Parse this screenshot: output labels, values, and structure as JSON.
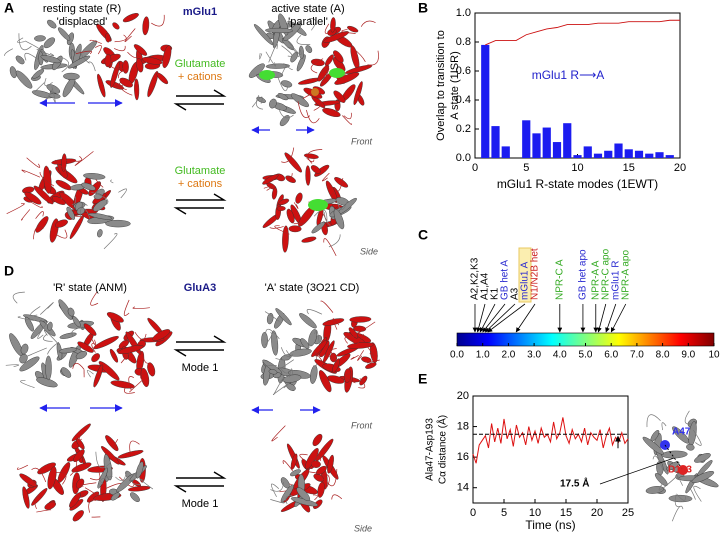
{
  "panel_labels": [
    "A",
    "B",
    "C",
    "D",
    "E"
  ],
  "panel_a": {
    "left_title": "resting state (R)",
    "left_subtitle": "'displaced'",
    "center_title": "mGlu1",
    "right_title": "active state (A)",
    "right_subtitle": "'parallel'",
    "ligand_1": "Glutamate",
    "ion_1": "+ cations",
    "view_1": "Front",
    "ligand_2": "Glutamate",
    "ion_2": "+ cations",
    "view_2": "Side"
  },
  "panel_d": {
    "left_title": "'R' state (ANM)",
    "center_title": "GluA3",
    "right_title": "'A' state (3O21 CD)",
    "mode_1": "Mode 1",
    "view_1": "Front",
    "mode_2": "Mode 1",
    "view_2": "Side"
  },
  "panel_e_structure": {
    "label_1": "A47",
    "label_2": "D193"
  },
  "chart_data": [
    {
      "type": "bar",
      "ylabel": [
        "Overlap to transition to",
        "A state (1ISR)"
      ],
      "xlabel": "mGlu1 R-state modes (1EWT)",
      "annotation": "mGlu1 R⟶A",
      "bars": {
        "color": "#1c1cf0",
        "x": [
          1,
          2,
          3,
          5,
          6,
          7,
          8,
          9,
          10,
          11,
          12,
          13,
          14,
          15,
          16,
          17,
          18,
          19
        ],
        "values": [
          0.78,
          0.22,
          0.08,
          0.26,
          0.17,
          0.21,
          0.11,
          0.24,
          0.02,
          0.08,
          0.03,
          0.05,
          0.1,
          0.06,
          0.05,
          0.03,
          0.04,
          0.02
        ]
      },
      "cumulative": {
        "color": "#cc1111",
        "x": [
          1,
          2,
          3,
          4,
          5,
          6,
          7,
          8,
          9,
          10,
          11,
          12,
          13,
          14,
          15,
          16,
          17,
          18,
          19,
          20
        ],
        "values": [
          0.78,
          0.81,
          0.81,
          0.81,
          0.85,
          0.87,
          0.89,
          0.9,
          0.92,
          0.92,
          0.92,
          0.93,
          0.93,
          0.93,
          0.94,
          0.94,
          0.94,
          0.94,
          0.95,
          0.95
        ]
      },
      "xlim": [
        0,
        20
      ],
      "xticks": [
        0,
        5,
        10,
        15,
        20
      ],
      "ylim": [
        0,
        1
      ],
      "yticks": [
        {
          "value": 0,
          "label": "0.0"
        },
        {
          "value": 0.2,
          "label": "0.2"
        },
        {
          "value": 0.4,
          "label": "0.4"
        },
        {
          "value": 0.6,
          "label": "0.6"
        },
        {
          "value": 0.8,
          "label": "0.8"
        },
        {
          "value": 1,
          "label": "1.0"
        }
      ]
    },
    {
      "type": "colorbar",
      "xlim": [
        0,
        10
      ],
      "xticks": [
        {
          "value": 0,
          "label": "0.0"
        },
        {
          "value": 1,
          "label": "1.0"
        },
        {
          "value": 2,
          "label": "2.0"
        },
        {
          "value": 3,
          "label": "3.0"
        },
        {
          "value": 4,
          "label": "4.0"
        },
        {
          "value": 5,
          "label": "5.0"
        },
        {
          "value": 6,
          "label": "6.0"
        },
        {
          "value": 7,
          "label": "7.0"
        },
        {
          "value": 8,
          "label": "8.0"
        },
        {
          "value": 9,
          "label": "9.0"
        },
        10
      ],
      "markers": [
        {
          "label": "A2,K2,K3",
          "value": 0.7,
          "color": "#000000"
        },
        {
          "label": "A1,A4",
          "value": 0.8,
          "color": "#000000"
        },
        {
          "label": "K1",
          "value": 0.9,
          "color": "#000000"
        },
        {
          "label": "GB het A",
          "value": 1.0,
          "color": "#2a2ad0"
        },
        {
          "label": "A3",
          "value": 1.1,
          "color": "#000000"
        },
        {
          "label": "mGlu1 A",
          "value": 1.2,
          "color": "#2a2ad0",
          "highlight": "#fbeeb0"
        },
        {
          "label": "N1/N2B het",
          "value": 2.3,
          "color": "#cc2222"
        },
        {
          "label": "NPR-C A",
          "value": 4.0,
          "color": "#33aa22"
        },
        {
          "label": "GB het apo",
          "value": 4.9,
          "color": "#2a2ad0"
        },
        {
          "label": "NPR-A A",
          "value": 5.4,
          "color": "#33aa22"
        },
        {
          "label": "NPR-C apo",
          "value": 5.5,
          "color": "#33aa22"
        },
        {
          "label": "mGlu1 R",
          "value": 5.8,
          "color": "#2a2ad0"
        },
        {
          "label": "NPR-A apo",
          "value": 6.0,
          "color": "#33aa22"
        }
      ]
    },
    {
      "type": "line",
      "ylabel": [
        "Ala47-Asp193",
        "Cα distance (Å)"
      ],
      "xlabel": "Time (ns)",
      "hline": 17.5,
      "hline_label": "17.5 Å",
      "color": "#dd1111",
      "x": [
        0,
        0.5,
        1,
        1.5,
        2,
        2.5,
        3,
        3.5,
        4,
        4.5,
        5,
        5.5,
        6,
        6.5,
        7,
        7.5,
        8,
        8.5,
        9,
        9.5,
        10,
        10.5,
        11,
        11.5,
        12,
        12.5,
        13,
        13.5,
        14,
        14.5,
        15,
        15.5,
        16,
        16.5,
        17,
        17.5,
        18,
        18.5,
        19,
        19.5,
        20,
        20.5,
        21,
        21.5,
        22,
        22.5,
        23,
        23.5,
        24,
        24.5,
        25
      ],
      "values": [
        16.2,
        15.6,
        16.8,
        17.1,
        17.4,
        16.6,
        18.2,
        17.0,
        17.9,
        16.9,
        18.5,
        17.2,
        17.8,
        16.7,
        18.1,
        17.3,
        17.6,
        16.8,
        18.0,
        17.1,
        17.7,
        16.9,
        17.9,
        17.3,
        17.5,
        17.0,
        18.3,
        17.2,
        17.6,
        18.6,
        17.4,
        16.9,
        17.8,
        17.2,
        17.5,
        17.0,
        17.9,
        16.8,
        17.6,
        17.3,
        17.1,
        17.8,
        16.6,
        17.4,
        17.9,
        16.8,
        17.3,
        17.0,
        17.6,
        16.9,
        17.2
      ],
      "xlim": [
        0,
        25
      ],
      "xticks": [
        0,
        5,
        10,
        15,
        20,
        25
      ],
      "ylim": [
        13,
        20
      ],
      "yticks": [
        14,
        16,
        18,
        20
      ]
    }
  ]
}
